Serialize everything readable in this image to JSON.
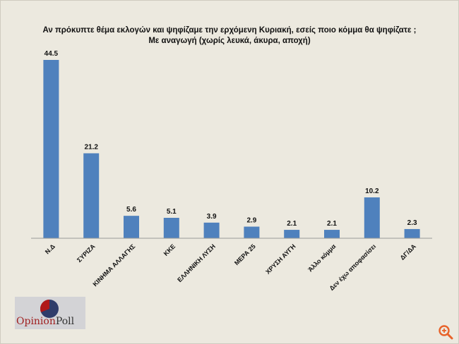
{
  "chart_data": {
    "type": "bar",
    "title": "Αν πρόκυπτε θέμα εκλογών και ψηφίζαμε την ερχόμενη Κυριακή, εσείς ποιο κόμμα θα ψηφίζατε ;",
    "subtitle": "Με αναγωγή (χωρίς λευκά, άκυρα, αποχή)",
    "categories": [
      "Ν.Δ",
      "ΣΥΡΙΖΑ",
      "ΚΙΝΗΜΑ ΑΛΛΑΓΗΣ",
      "ΚΚΕ",
      "ΕΛΛΗΝΙΚΗ ΛΥΣΗ",
      "ΜΕΡΑ 25",
      "ΧΡΥΣΗ ΑΥΓΗ",
      "Άλλο κόμμα",
      "Δεν έχω αποφασίσει",
      "ΔΓ/ΔΑ"
    ],
    "values": [
      44.5,
      21.2,
      5.6,
      5.1,
      3.9,
      2.9,
      2.1,
      2.1,
      10.2,
      2.3
    ],
    "data_labels": [
      "44.5",
      "21.2",
      "5.6",
      "5.1",
      "3.9",
      "2.9",
      "2.1",
      "2.1",
      "10.2",
      "2.3"
    ],
    "ylim": [
      0,
      45
    ],
    "grid": false,
    "bar_color": "#4f81bd"
  },
  "logo": {
    "text_a": "Opinion",
    "text_b": "Poll"
  },
  "icons": {
    "zoom": "zoom-in-icon"
  }
}
